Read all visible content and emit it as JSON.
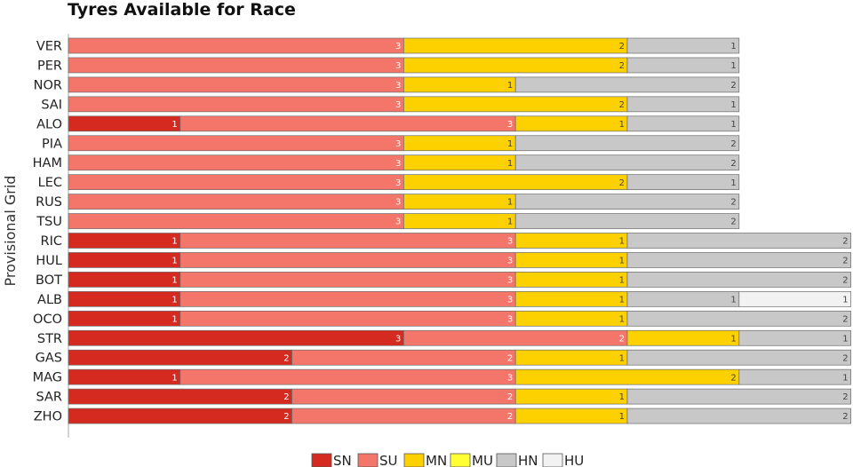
{
  "chart_data": {
    "type": "bar",
    "orientation": "horizontal",
    "stacked": true,
    "title": "Tyres Available for Race",
    "ylabel": "Provisional Grid",
    "xlabel": "",
    "categories": [
      "VER",
      "PER",
      "NOR",
      "SAI",
      "ALO",
      "PIA",
      "HAM",
      "LEC",
      "RUS",
      "TSU",
      "RIC",
      "HUL",
      "BOT",
      "ALB",
      "OCO",
      "STR",
      "GAS",
      "MAG",
      "SAR",
      "ZHO"
    ],
    "series": [
      {
        "name": "SN",
        "color": "#d42a20",
        "values": [
          0,
          0,
          0,
          0,
          1,
          0,
          0,
          0,
          0,
          0,
          1,
          1,
          1,
          1,
          1,
          3,
          2,
          1,
          2,
          2
        ]
      },
      {
        "name": "SU",
        "color": "#f4766a",
        "values": [
          3,
          3,
          3,
          3,
          3,
          3,
          3,
          3,
          3,
          3,
          3,
          3,
          3,
          3,
          3,
          2,
          2,
          3,
          2,
          2
        ]
      },
      {
        "name": "MN",
        "color": "#fdd000",
        "values": [
          2,
          2,
          1,
          2,
          1,
          1,
          1,
          2,
          1,
          1,
          1,
          1,
          1,
          1,
          1,
          1,
          1,
          2,
          1,
          1
        ]
      },
      {
        "name": "MU",
        "color": "#ffff33",
        "values": [
          0,
          0,
          0,
          0,
          0,
          0,
          0,
          0,
          0,
          0,
          0,
          0,
          0,
          0,
          0,
          0,
          0,
          0,
          0,
          0
        ]
      },
      {
        "name": "HN",
        "color": "#c8c8c8",
        "values": [
          1,
          1,
          2,
          1,
          1,
          2,
          2,
          1,
          2,
          2,
          2,
          2,
          2,
          1,
          2,
          1,
          2,
          1,
          2,
          2
        ]
      },
      {
        "name": "HU",
        "color": "#f2f2f2",
        "values": [
          0,
          0,
          0,
          0,
          0,
          0,
          0,
          0,
          0,
          0,
          0,
          0,
          0,
          1,
          0,
          0,
          0,
          0,
          0,
          0
        ]
      }
    ],
    "xlim": [
      0,
      7
    ],
    "grid": false,
    "legend": "bottom-center"
  }
}
